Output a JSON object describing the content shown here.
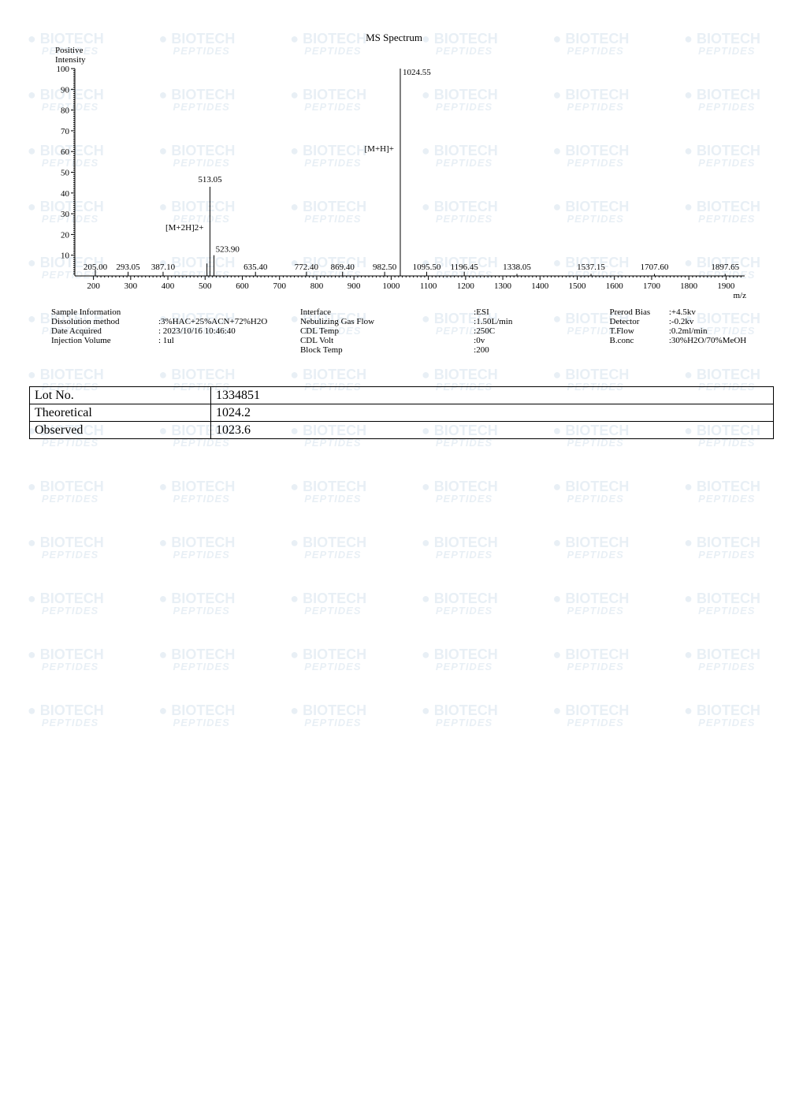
{
  "watermark": {
    "line1": "BIOTECH",
    "line2": "PEPTIDES",
    "rows": 13,
    "cols": 6
  },
  "header": {
    "title": "MS Spectrum",
    "mode_line1": "Positive",
    "mode_line2": "Intensity"
  },
  "chart": {
    "type": "mass-spectrum",
    "background_color": "#ffffff",
    "axis_color": "#000000",
    "peak_color": "#000000",
    "label_fontsize": 11,
    "tick_fontsize": 11,
    "x_axis": {
      "label": "m/z",
      "min": 150,
      "max": 1950,
      "major_ticks": [
        200,
        300,
        400,
        500,
        600,
        700,
        800,
        900,
        1000,
        1100,
        1200,
        1300,
        1400,
        1500,
        1600,
        1700,
        1800,
        1900
      ]
    },
    "y_axis": {
      "label_top": "100",
      "min": 0,
      "max": 100,
      "major_ticks": [
        10,
        20,
        30,
        40,
        50,
        60,
        70,
        80,
        90,
        100
      ]
    },
    "annotations": [
      {
        "mz": 1024.55,
        "text": "[M+H]+",
        "y": 60
      },
      {
        "mz": 513.05,
        "text": "[M+2H]2+",
        "y": 22
      }
    ],
    "peaks": [
      {
        "mz": 205.0,
        "intensity": 3,
        "label": "205.00"
      },
      {
        "mz": 293.05,
        "intensity": 2,
        "label": "293.05"
      },
      {
        "mz": 387.1,
        "intensity": 2,
        "label": "387.10"
      },
      {
        "mz": 505.0,
        "intensity": 6,
        "label": ""
      },
      {
        "mz": 513.05,
        "intensity": 43,
        "label": "513.05"
      },
      {
        "mz": 523.9,
        "intensity": 10,
        "label": "523.90"
      },
      {
        "mz": 635.4,
        "intensity": 2,
        "label": "635.40"
      },
      {
        "mz": 772.4,
        "intensity": 2,
        "label": "772.40"
      },
      {
        "mz": 869.4,
        "intensity": 2,
        "label": "869.40"
      },
      {
        "mz": 982.5,
        "intensity": 2,
        "label": "982.50"
      },
      {
        "mz": 1024.55,
        "intensity": 100,
        "label": "1024.55"
      },
      {
        "mz": 1095.5,
        "intensity": 2,
        "label": "1095.50"
      },
      {
        "mz": 1196.45,
        "intensity": 2,
        "label": "1196.45"
      },
      {
        "mz": 1338.05,
        "intensity": 1,
        "label": "1338.05"
      },
      {
        "mz": 1537.15,
        "intensity": 1,
        "label": "1537.15"
      },
      {
        "mz": 1707.6,
        "intensity": 1,
        "label": "1707.60"
      },
      {
        "mz": 1897.65,
        "intensity": 1,
        "label": "1897.65"
      }
    ]
  },
  "params": {
    "col1": [
      [
        "Sample Information",
        ""
      ],
      [
        "Dissolution method",
        ":3%HAC+25%ACN+72%H2O"
      ],
      [
        "Date Acquired",
        ": 2023/10/16  10:46:40"
      ],
      [
        "Injection Volume",
        ": 1ul"
      ]
    ],
    "col2": [
      [
        "Interface",
        ""
      ],
      [
        "Nebulizing Gas Flow",
        ""
      ],
      [
        "CDL Temp",
        ""
      ],
      [
        "CDL Volt",
        ""
      ],
      [
        "Block Temp",
        ""
      ]
    ],
    "col3": [
      [
        ":ESI",
        ""
      ],
      [
        ":1.50L/min",
        ""
      ],
      [
        ":250C",
        ""
      ],
      [
        ":0v",
        ""
      ],
      [
        ":200",
        ""
      ]
    ],
    "col4": [
      [
        "Prerod Bias",
        ":+4.5kv"
      ],
      [
        "Detector",
        ":-0.2kv"
      ],
      [
        "T.Flow",
        ":0.2ml/min"
      ],
      [
        "B.conc",
        ":30%H2O/70%MeOH"
      ]
    ]
  },
  "table": {
    "rows": [
      [
        "Lot No.",
        "1334851"
      ],
      [
        "Theoretical",
        "1024.2"
      ],
      [
        "Observed",
        "1023.6"
      ]
    ]
  }
}
